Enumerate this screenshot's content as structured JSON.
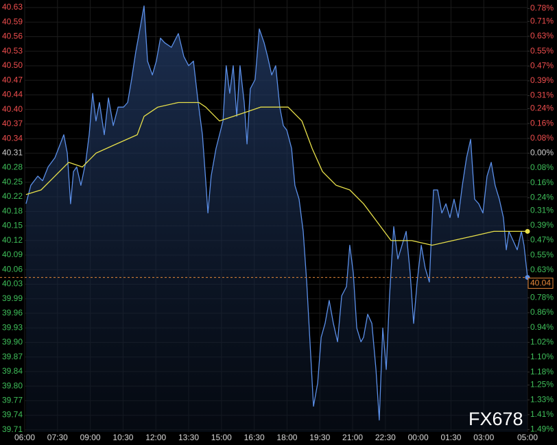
{
  "chart_data": {
    "type": "line",
    "watermark": "FX678",
    "xlim": [
      0,
      23
    ],
    "xticks": [
      {
        "value": 0,
        "label": "06:00"
      },
      {
        "value": 1.5,
        "label": "07:30"
      },
      {
        "value": 3,
        "label": "09:00"
      },
      {
        "value": 4.5,
        "label": "10:30"
      },
      {
        "value": 6,
        "label": "12:00"
      },
      {
        "value": 7.5,
        "label": "13:30"
      },
      {
        "value": 9,
        "label": "15:00"
      },
      {
        "value": 10.5,
        "label": "16:30"
      },
      {
        "value": 12,
        "label": "18:00"
      },
      {
        "value": 13.5,
        "label": "19:30"
      },
      {
        "value": 15,
        "label": "21:00"
      },
      {
        "value": 16.5,
        "label": "22:30"
      },
      {
        "value": 18,
        "label": "00:00"
      },
      {
        "value": 19.5,
        "label": "01:30"
      },
      {
        "value": 21,
        "label": "03:00"
      },
      {
        "value": 23,
        "label": "05:00"
      }
    ],
    "ylim": [
      39.7041,
      40.6428
    ],
    "yticks": [
      {
        "value": 40.6264,
        "label": "40.63"
      },
      {
        "value": 40.5948,
        "label": "40.59"
      },
      {
        "value": 40.5631,
        "label": "40.56"
      },
      {
        "value": 40.5315,
        "label": "40.53"
      },
      {
        "value": 40.4998,
        "label": "40.50"
      },
      {
        "value": 40.4682,
        "label": "40.47"
      },
      {
        "value": 40.4366,
        "label": "40.44"
      },
      {
        "value": 40.4049,
        "label": "40.40"
      },
      {
        "value": 40.3733,
        "label": "40.37"
      },
      {
        "value": 40.3416,
        "label": "40.34"
      },
      {
        "value": 40.31,
        "label": "40.31"
      },
      {
        "value": 40.2784,
        "label": "40.28"
      },
      {
        "value": 40.2467,
        "label": "40.25"
      },
      {
        "value": 40.2151,
        "label": "40.22"
      },
      {
        "value": 40.1834,
        "label": "40.18"
      },
      {
        "value": 40.1518,
        "label": "40.15"
      },
      {
        "value": 40.1202,
        "label": "40.12"
      },
      {
        "value": 40.0885,
        "label": "40.09"
      },
      {
        "value": 40.0569,
        "label": "40.06"
      },
      {
        "value": 40.0252,
        "label": "40.03"
      },
      {
        "value": 39.9936,
        "label": "39.99"
      },
      {
        "value": 39.962,
        "label": "39.96"
      },
      {
        "value": 39.9303,
        "label": "39.93"
      },
      {
        "value": 39.8987,
        "label": "39.90"
      },
      {
        "value": 39.867,
        "label": "39.87"
      },
      {
        "value": 39.8354,
        "label": "39.84"
      },
      {
        "value": 39.8038,
        "label": "39.80"
      },
      {
        "value": 39.7721,
        "label": "39.77"
      },
      {
        "value": 39.7405,
        "label": "39.74"
      },
      {
        "value": 39.7088,
        "label": "39.71"
      }
    ],
    "y2lim": [
      -1.503,
      0.8257
    ],
    "y2ticks": [
      {
        "value": 0.78,
        "label": "0.78%"
      },
      {
        "value": 0.71,
        "label": "0.71%"
      },
      {
        "value": 0.63,
        "label": "0.63%"
      },
      {
        "value": 0.55,
        "label": "0.55%"
      },
      {
        "value": 0.47,
        "label": "0.47%"
      },
      {
        "value": 0.39,
        "label": "0.39%"
      },
      {
        "value": 0.31,
        "label": "0.31%"
      },
      {
        "value": 0.24,
        "label": "0.24%"
      },
      {
        "value": 0.16,
        "label": "0.16%"
      },
      {
        "value": 0.08,
        "label": "0.08%"
      },
      {
        "value": 0,
        "label": "0.00%"
      },
      {
        "value": -0.08,
        "label": "0.08%"
      },
      {
        "value": -0.16,
        "label": "0.16%"
      },
      {
        "value": -0.24,
        "label": "0.24%"
      },
      {
        "value": -0.31,
        "label": "0.31%"
      },
      {
        "value": -0.39,
        "label": "0.39%"
      },
      {
        "value": -0.47,
        "label": "0.47%"
      },
      {
        "value": -0.55,
        "label": "0.55%"
      },
      {
        "value": -0.63,
        "label": "0.63%"
      },
      {
        "value": -0.71,
        "label": "0.71%"
      },
      {
        "value": -0.78,
        "label": "0.78%"
      },
      {
        "value": -0.86,
        "label": "0.86%"
      },
      {
        "value": -0.94,
        "label": "0.94%"
      },
      {
        "value": -1.02,
        "label": "1.02%"
      },
      {
        "value": -1.1,
        "label": "1.10%"
      },
      {
        "value": -1.18,
        "label": "1.18%"
      },
      {
        "value": -1.25,
        "label": "1.25%"
      },
      {
        "value": -1.33,
        "label": "1.33%"
      },
      {
        "value": -1.41,
        "label": "1.41%"
      },
      {
        "value": -1.49,
        "label": "1.49%"
      }
    ],
    "up_color": "#f04e4e",
    "down_color": "#3fbf5a",
    "flat_color": "#cfcfcf",
    "grid": true,
    "reference_line": {
      "value": 40.04,
      "color": "#e8893a"
    },
    "series": [
      {
        "color": "#5b8fe8",
        "area": true,
        "x": [
          0.06,
          0.28,
          0.6,
          0.82,
          1.07,
          1.38,
          1.63,
          1.79,
          1.95,
          2.1,
          2.23,
          2.38,
          2.57,
          2.79,
          2.95,
          3.11,
          3.26,
          3.42,
          3.64,
          3.83,
          4.05,
          4.27,
          4.52,
          4.71,
          4.89,
          5.08,
          5.27,
          5.46,
          5.62,
          5.84,
          6.02,
          6.21,
          6.4,
          6.71,
          7.03,
          7.28,
          7.5,
          7.72,
          7.91,
          8.13,
          8.28,
          8.38,
          8.53,
          8.75,
          8.91,
          9.07,
          9.22,
          9.38,
          9.54,
          9.7,
          9.85,
          10.04,
          10.17,
          10.32,
          10.54,
          10.73,
          10.95,
          11.11,
          11.3,
          11.48,
          11.67,
          11.83,
          11.99,
          12.21,
          12.36,
          12.55,
          12.74,
          12.9,
          13.05,
          13.21,
          13.4,
          13.56,
          13.74,
          13.93,
          14.12,
          14.31,
          14.5,
          14.72,
          14.87,
          15.03,
          15.19,
          15.38,
          15.5,
          15.69,
          15.88,
          16.07,
          16.22,
          16.38,
          16.54,
          16.69,
          16.88,
          17.07,
          17.26,
          17.45,
          17.63,
          17.79,
          17.95,
          18.14,
          18.32,
          18.51,
          18.7,
          18.89,
          19.08,
          19.27,
          19.45,
          19.64,
          19.83,
          20.02,
          20.21,
          20.4,
          20.58,
          20.77,
          20.96,
          21.15,
          21.34,
          21.52,
          21.71,
          21.9,
          22.03,
          22.15,
          22.34,
          22.53,
          22.72,
          22.84,
          23
        ],
        "values": [
          40.2,
          40.24,
          40.26,
          40.25,
          40.28,
          40.3,
          40.33,
          40.35,
          40.31,
          40.2,
          40.27,
          40.28,
          40.24,
          40.29,
          40.35,
          40.44,
          40.38,
          40.42,
          40.35,
          40.43,
          40.37,
          40.41,
          40.41,
          40.42,
          40.47,
          40.53,
          40.58,
          40.63,
          40.51,
          40.48,
          40.51,
          40.56,
          40.55,
          40.54,
          40.57,
          40.52,
          40.5,
          40.51,
          40.43,
          40.35,
          40.25,
          40.18,
          40.26,
          40.32,
          40.35,
          40.38,
          40.5,
          40.44,
          40.5,
          40.39,
          40.5,
          40.42,
          40.33,
          40.45,
          40.47,
          40.58,
          40.55,
          40.52,
          40.48,
          40.5,
          40.41,
          40.37,
          40.36,
          40.32,
          40.24,
          40.21,
          40.14,
          40.03,
          39.9,
          39.76,
          39.81,
          39.91,
          39.94,
          39.99,
          39.94,
          39.9,
          40.0,
          40.02,
          40.11,
          40.05,
          39.93,
          39.9,
          39.91,
          39.96,
          39.94,
          39.84,
          39.73,
          39.93,
          39.84,
          40.0,
          40.15,
          40.08,
          40.11,
          40.14,
          40.05,
          39.94,
          40.03,
          40.11,
          40.06,
          40.03,
          40.23,
          40.23,
          40.18,
          40.2,
          40.17,
          40.21,
          40.17,
          40.24,
          40.3,
          40.34,
          40.21,
          40.2,
          40.18,
          40.26,
          40.29,
          40.24,
          40.21,
          40.17,
          40.1,
          40.14,
          40.12,
          40.1,
          40.14,
          40.11,
          40.04
        ]
      },
      {
        "color": "#e8e04a",
        "x": [
          0.06,
          0.75,
          1.38,
          2.01,
          2.64,
          3.26,
          4.2,
          5.15,
          5.46,
          6.09,
          7.03,
          7.97,
          8.28,
          8.91,
          9.54,
          10.17,
          10.79,
          11.42,
          12.05,
          12.68,
          13.15,
          13.62,
          14.25,
          14.87,
          15.5,
          16.13,
          16.76,
          17.7,
          18.64,
          19.58,
          20.52,
          21.46,
          22.4,
          23
        ],
        "values": [
          40.22,
          40.23,
          40.26,
          40.29,
          40.28,
          40.31,
          40.33,
          40.35,
          40.39,
          40.41,
          40.42,
          40.42,
          40.41,
          40.38,
          40.39,
          40.4,
          40.41,
          40.41,
          40.41,
          40.38,
          40.32,
          40.27,
          40.24,
          40.23,
          40.2,
          40.16,
          40.12,
          40.12,
          40.11,
          40.12,
          40.13,
          40.14,
          40.14,
          40.14
        ]
      }
    ]
  }
}
